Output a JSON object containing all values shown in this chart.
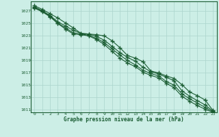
{
  "title": "Graphe pression niveau de la mer (hPa)",
  "bg_color": "#cceee6",
  "grid_color": "#aad4cc",
  "line_color": "#1a5c32",
  "xlim": [
    -0.5,
    23.5
  ],
  "ylim": [
    1010.5,
    1028.5
  ],
  "yticks": [
    1011,
    1013,
    1015,
    1017,
    1019,
    1021,
    1023,
    1025,
    1027
  ],
  "xticks": [
    0,
    1,
    2,
    3,
    4,
    5,
    6,
    7,
    8,
    9,
    10,
    11,
    12,
    13,
    14,
    15,
    16,
    17,
    18,
    19,
    20,
    21,
    22,
    23
  ],
  "series": [
    [
      1027.8,
      1027.2,
      1026.5,
      1025.8,
      1025.0,
      1024.2,
      1023.3,
      1023.2,
      1023.1,
      1022.9,
      1022.1,
      1021.0,
      1019.7,
      1019.3,
      1018.7,
      1017.2,
      1016.9,
      1016.4,
      1016.0,
      1015.0,
      1013.8,
      1013.2,
      1012.5,
      1010.8
    ],
    [
      1027.6,
      1027.0,
      1026.2,
      1025.2,
      1024.5,
      1023.8,
      1023.3,
      1023.2,
      1022.8,
      1022.2,
      1021.2,
      1020.2,
      1019.4,
      1018.8,
      1017.8,
      1017.1,
      1016.7,
      1016.2,
      1015.6,
      1014.0,
      1013.1,
      1012.4,
      1011.7,
      1010.7
    ],
    [
      1027.5,
      1026.9,
      1026.1,
      1025.0,
      1024.2,
      1023.4,
      1023.2,
      1023.0,
      1022.5,
      1021.8,
      1020.8,
      1019.8,
      1018.9,
      1018.2,
      1017.3,
      1016.8,
      1016.4,
      1015.5,
      1014.9,
      1013.5,
      1012.7,
      1012.0,
      1011.3,
      1010.6
    ],
    [
      1027.4,
      1026.8,
      1026.0,
      1024.9,
      1024.0,
      1023.2,
      1023.1,
      1022.9,
      1022.3,
      1021.5,
      1020.4,
      1019.3,
      1018.5,
      1017.9,
      1017.0,
      1016.5,
      1016.1,
      1015.2,
      1014.5,
      1013.1,
      1012.3,
      1011.6,
      1011.0,
      1010.5
    ]
  ]
}
